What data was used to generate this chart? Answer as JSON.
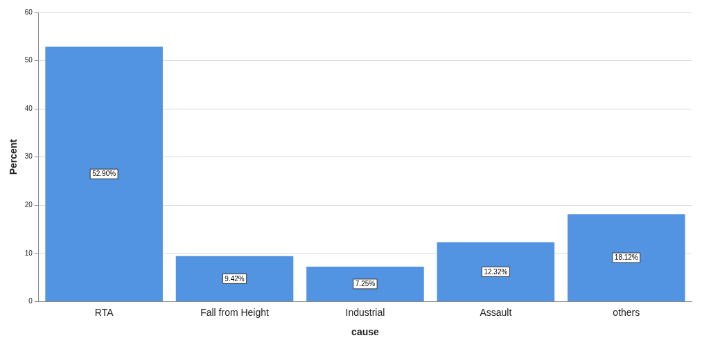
{
  "chart_data": {
    "type": "bar",
    "xlabel": "cause",
    "ylabel": "Percent",
    "categories": [
      "RTA",
      "Fall from Height",
      "Industrial",
      "Assault",
      "others"
    ],
    "values": [
      52.9,
      9.42,
      7.25,
      12.32,
      18.12
    ],
    "value_labels": [
      "52.90%",
      "9.42%",
      "7.25%",
      "12.32%",
      "18.12%"
    ],
    "color": "#5294e2",
    "ylim": [
      0,
      60
    ],
    "yticks": [
      0,
      10,
      20,
      30,
      40,
      50,
      60
    ],
    "grid": "y",
    "legend": false
  }
}
